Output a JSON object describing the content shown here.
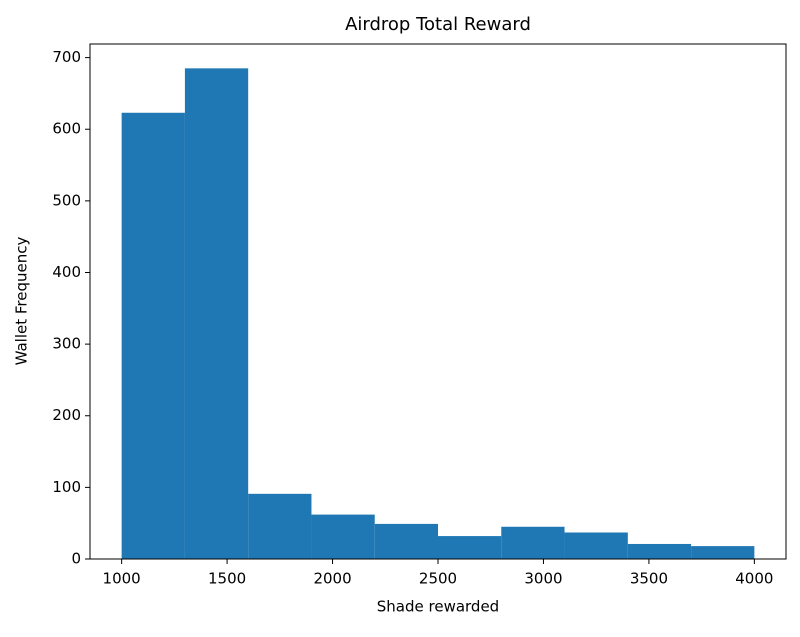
{
  "chart_data": {
    "type": "histogram",
    "title": "Airdrop Total Reward",
    "x_label": "Shade rewarded",
    "y_label": "Wallet Frequency",
    "bins": [
      1000,
      1300,
      1600,
      1900,
      2200,
      2500,
      2800,
      3100,
      3400,
      3700,
      4000
    ],
    "values": [
      623,
      685,
      91,
      62,
      49,
      32,
      45,
      37,
      21,
      18
    ],
    "color": "#1f77b4",
    "xlim": [
      850,
      4150
    ],
    "xticks": [
      1000,
      1500,
      2000,
      2500,
      3000,
      3500,
      4000
    ],
    "ylim": [
      0,
      719
    ],
    "yticks": [
      0,
      100,
      200,
      300,
      400,
      500,
      600,
      700
    ]
  }
}
